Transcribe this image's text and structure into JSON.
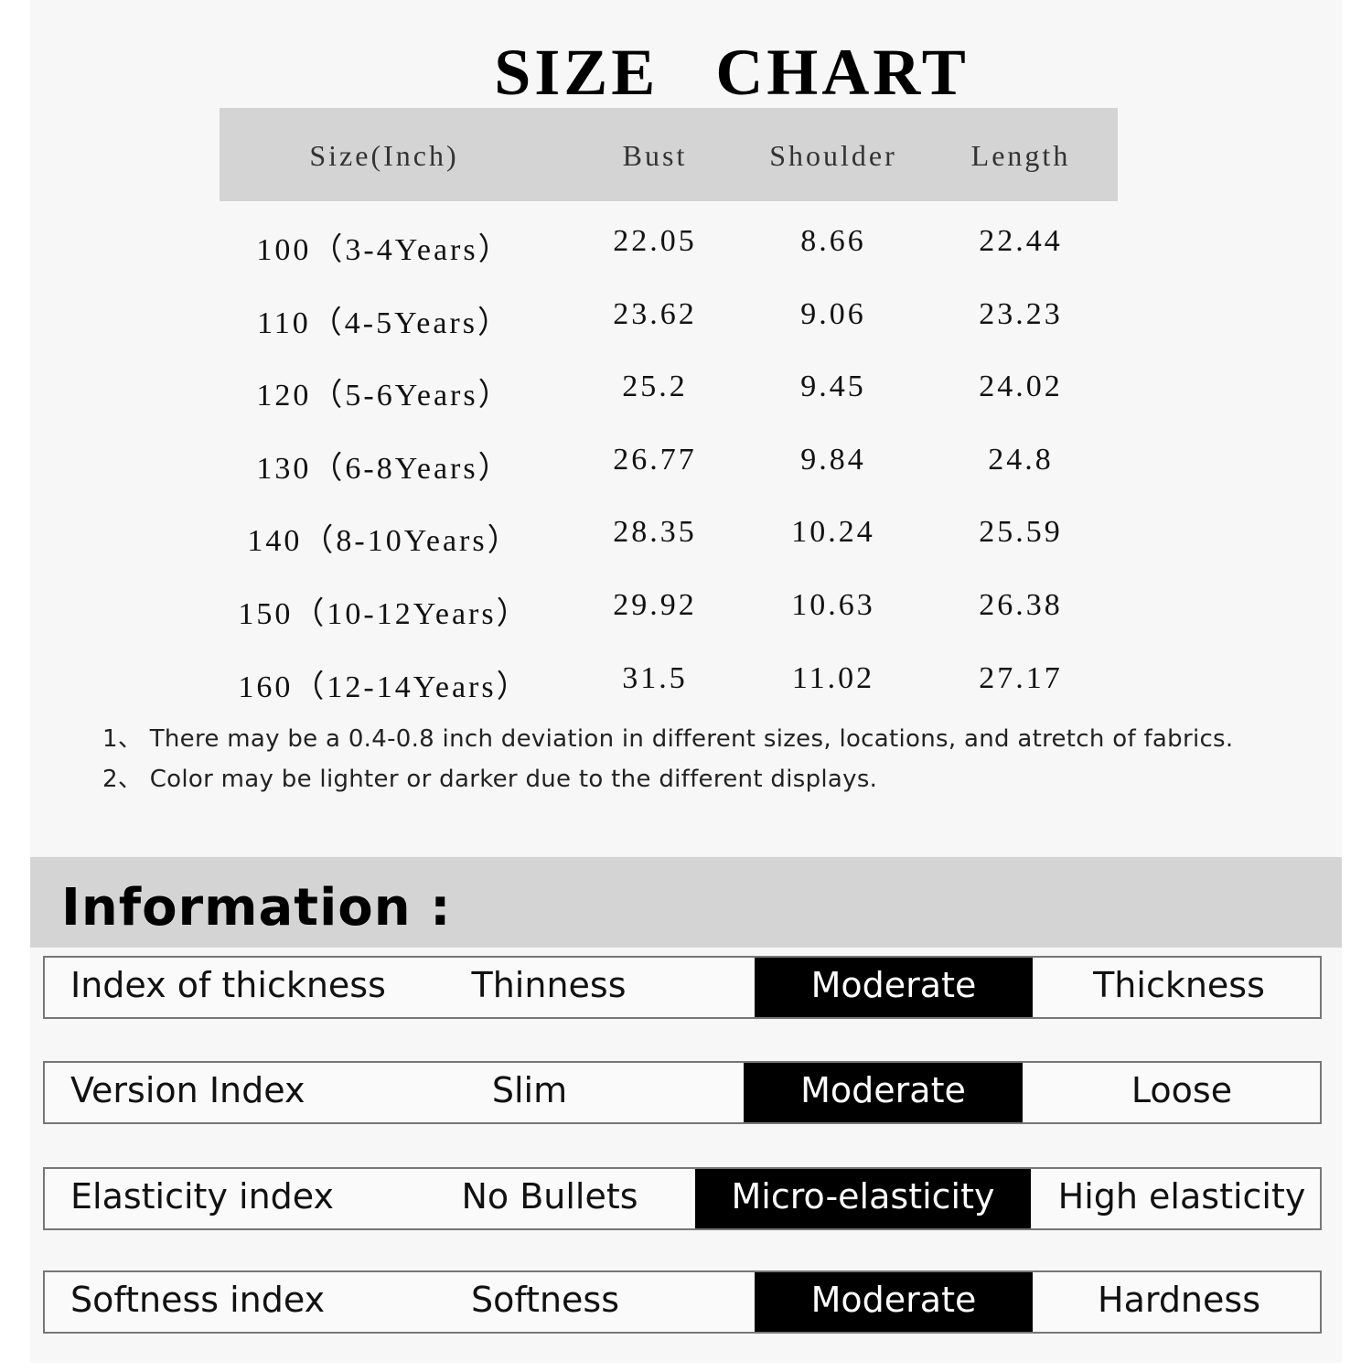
{
  "title": "SIZE CHART",
  "table": {
    "headers": [
      "Size(Inch)",
      "Bust",
      "Shoulder",
      "Length"
    ],
    "rows": [
      [
        "100（3-4Years）",
        "22.05",
        "8.66",
        "22.44"
      ],
      [
        "110（4-5Years）",
        "23.62",
        "9.06",
        "23.23"
      ],
      [
        "120（5-6Years）",
        "25.2",
        "9.45",
        "24.02"
      ],
      [
        "130（6-8Years）",
        "26.77",
        "9.84",
        "24.8"
      ],
      [
        "140（8-10Years）",
        "28.35",
        "10.24",
        "25.59"
      ],
      [
        "150（10-12Years）",
        "29.92",
        "10.63",
        "26.38"
      ],
      [
        "160（12-14Years）",
        "31.5",
        "11.02",
        "27.17"
      ]
    ]
  },
  "notes": [
    "1、 There may be a 0.4-0.8 inch deviation in different sizes, locations, and atretch of fabrics.",
    "2、 Color may be lighter or darker due to the different displays."
  ],
  "information": {
    "title": "Information :",
    "rows": [
      {
        "label": "Index of thickness",
        "options": [
          "Thinness",
          "Moderate",
          "Thickness"
        ],
        "selected": "Moderate"
      },
      {
        "label": "Version Index",
        "options": [
          "Slim",
          "Moderate",
          "Loose"
        ],
        "selected": "Moderate"
      },
      {
        "label": "Elasticity index",
        "options": [
          "No Bullets",
          "Micro-elasticity",
          "High elasticity"
        ],
        "selected": "Micro-elasticity"
      },
      {
        "label": "Softness index",
        "options": [
          "Softness",
          "Moderate",
          "Hardness"
        ],
        "selected": "Moderate"
      }
    ]
  },
  "colors": {
    "header_gray": "#d4d4d4",
    "selected_bg": "#000000",
    "page_bg": "#f7f7f7"
  }
}
